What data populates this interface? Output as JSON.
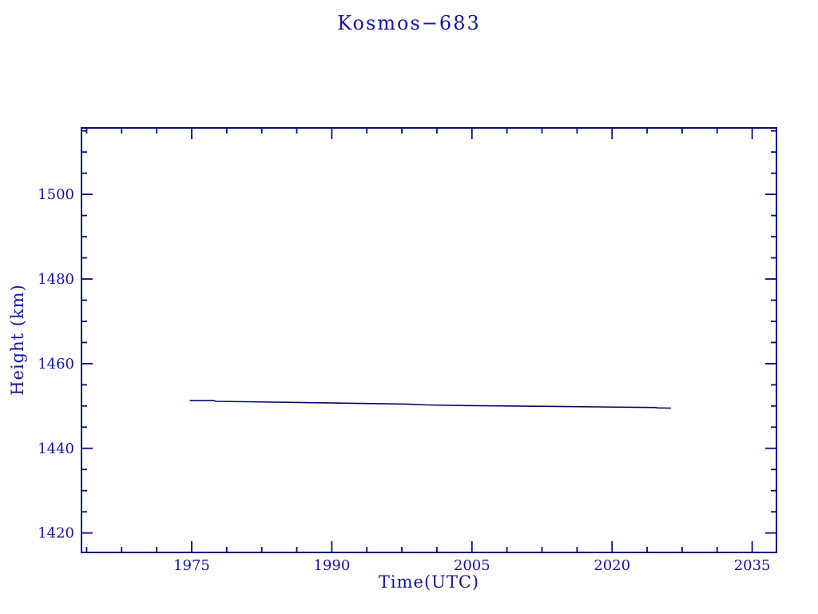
{
  "colors": {
    "background": "#ffffff",
    "frame": "#0b0b80",
    "text": "#1414a0",
    "line": "#06066e"
  },
  "chart_data": {
    "type": "line",
    "title": "Kosmos−683",
    "xlabel": "Time(UTC)",
    "ylabel": "Height (km)",
    "xlim": [
      1963.2,
      2037.6
    ],
    "ylim": [
      1415.4,
      1515.7
    ],
    "grid": false,
    "legend": null,
    "x_ticks": {
      "major": [
        1975,
        1990,
        2005,
        2020,
        2035
      ],
      "major_interval": 15,
      "minor_interval": 3.75,
      "labels": [
        "1975",
        "1990",
        "2005",
        "2020",
        "2035"
      ]
    },
    "y_ticks": {
      "major": [
        1420,
        1440,
        1460,
        1480,
        1500
      ],
      "major_interval": 20,
      "minor_interval": 5,
      "labels": [
        "1420",
        "1440",
        "1460",
        "1480",
        "1500"
      ]
    },
    "series": [
      {
        "points": [
          [
            1974.8,
            1451.3
          ],
          [
            1977.3,
            1451.3
          ],
          [
            1977.6,
            1451.1
          ],
          [
            1980.8,
            1451.0
          ],
          [
            1990.2,
            1450.7
          ],
          [
            1997.8,
            1450.45
          ],
          [
            2000.2,
            1450.25
          ],
          [
            2004.4,
            1450.1
          ],
          [
            2015.3,
            1449.85
          ],
          [
            2024.6,
            1449.65
          ],
          [
            2024.9,
            1449.55
          ],
          [
            2026.3,
            1449.5
          ]
        ]
      }
    ]
  }
}
